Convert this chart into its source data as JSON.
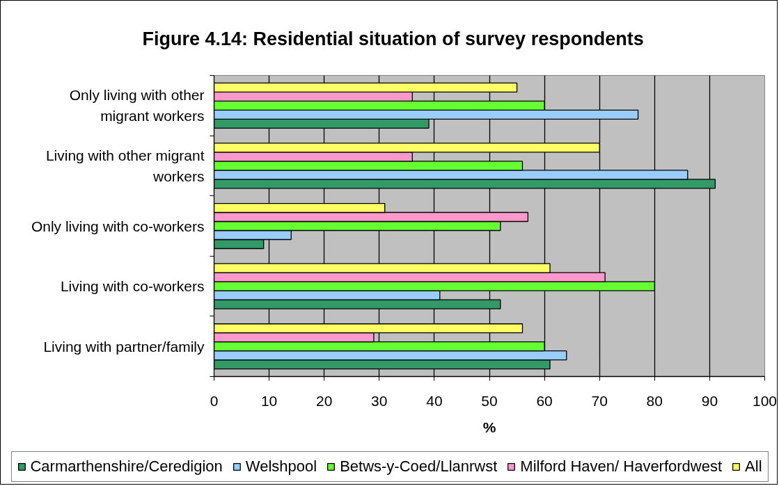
{
  "chart_data": {
    "type": "bar",
    "orientation": "horizontal",
    "title": "Figure 4.14: Residential situation of survey respondents",
    "xlabel": "%",
    "categories": [
      "Only living with other migrant workers",
      "Living with other migrant workers",
      "Only living with co-workers",
      "Living with co-workers",
      "Living with partner/family"
    ],
    "series": [
      {
        "name": "Carmarthenshire/Ceredigion",
        "color": "#339966",
        "values": [
          39,
          91,
          9,
          52,
          61
        ]
      },
      {
        "name": "Welshpool",
        "color": "#99ccff",
        "values": [
          77,
          86,
          14,
          41,
          64
        ]
      },
      {
        "name": "Betws-y-Coed/Llanrwst",
        "color": "#66ff33",
        "values": [
          60,
          56,
          52,
          80,
          60
        ]
      },
      {
        "name": "Milford Haven/ Haverfordwest",
        "color": "#ff99cc",
        "values": [
          36,
          36,
          57,
          71,
          29
        ]
      },
      {
        "name": "All",
        "color": "#ffff66",
        "values": [
          55,
          70,
          31,
          61,
          56
        ]
      }
    ],
    "xlim": [
      0,
      100
    ],
    "xticks": [
      0,
      10,
      20,
      30,
      40,
      50,
      60,
      70,
      80,
      90,
      100
    ],
    "grid": "x",
    "legend": "bottom"
  }
}
